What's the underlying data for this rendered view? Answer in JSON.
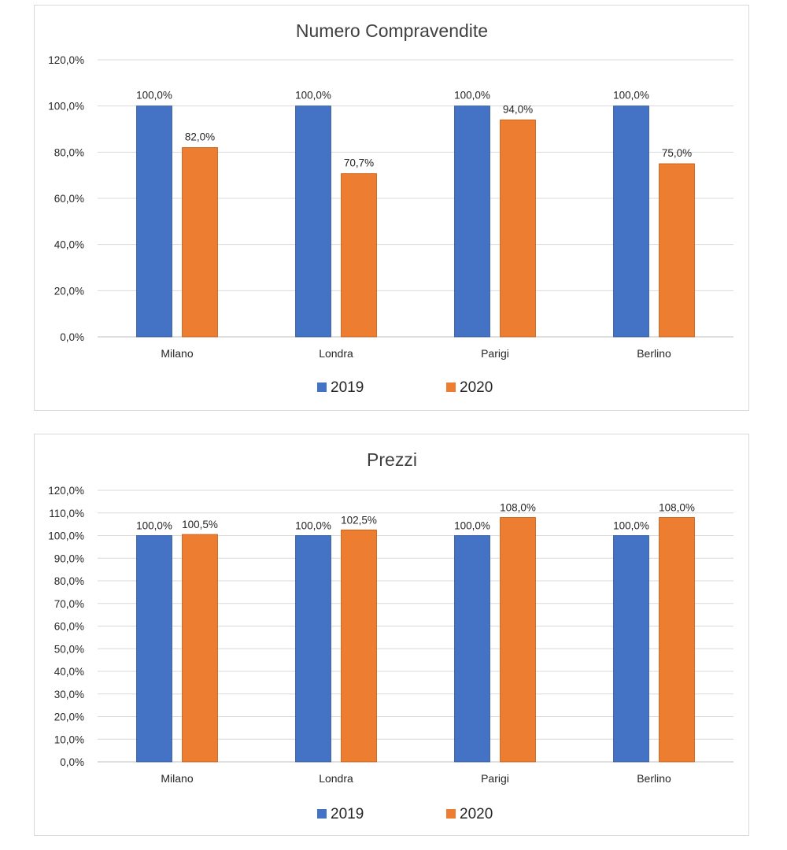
{
  "colors": {
    "series_2019": "#4472c4",
    "series_2019_edge": "#2f5597",
    "series_2020": "#ed7d31",
    "series_2020_edge": "#c55a11"
  },
  "chart_data": [
    {
      "type": "bar",
      "title": "Numero Compravendite",
      "categories": [
        "Milano",
        "Londra",
        "Parigi",
        "Berlino"
      ],
      "series": [
        {
          "name": "2019",
          "values": [
            100.0,
            100.0,
            100.0,
            100.0
          ],
          "labels": [
            "100,0%",
            "100,0%",
            "100,0%",
            "100,0%"
          ]
        },
        {
          "name": "2020",
          "values": [
            82.0,
            70.7,
            94.0,
            75.0
          ],
          "labels": [
            "82,0%",
            "70,7%",
            "94,0%",
            "75,0%"
          ]
        }
      ],
      "ylim": [
        0,
        120
      ],
      "yticks": [
        0,
        20,
        40,
        60,
        80,
        100,
        120
      ],
      "ytick_labels": [
        "0,0%",
        "20,0%",
        "40,0%",
        "60,0%",
        "80,0%",
        "100,0%",
        "120,0%"
      ],
      "grid": true,
      "legend": "bottom"
    },
    {
      "type": "bar",
      "title": "Prezzi",
      "categories": [
        "Milano",
        "Londra",
        "Parigi",
        "Berlino"
      ],
      "series": [
        {
          "name": "2019",
          "values": [
            100.0,
            100.0,
            100.0,
            100.0
          ],
          "labels": [
            "100,0%",
            "100,0%",
            "100,0%",
            "100,0%"
          ]
        },
        {
          "name": "2020",
          "values": [
            100.5,
            102.5,
            108.0,
            108.0
          ],
          "labels": [
            "100,5%",
            "102,5%",
            "108,0%",
            "108,0%"
          ]
        }
      ],
      "ylim": [
        0,
        120
      ],
      "yticks": [
        0,
        10,
        20,
        30,
        40,
        50,
        60,
        70,
        80,
        90,
        100,
        110,
        120
      ],
      "ytick_labels": [
        "0,0%",
        "10,0%",
        "20,0%",
        "30,0%",
        "40,0%",
        "50,0%",
        "60,0%",
        "70,0%",
        "80,0%",
        "90,0%",
        "100,0%",
        "110,0%",
        "120,0%"
      ],
      "grid": true,
      "legend": "bottom"
    }
  ]
}
